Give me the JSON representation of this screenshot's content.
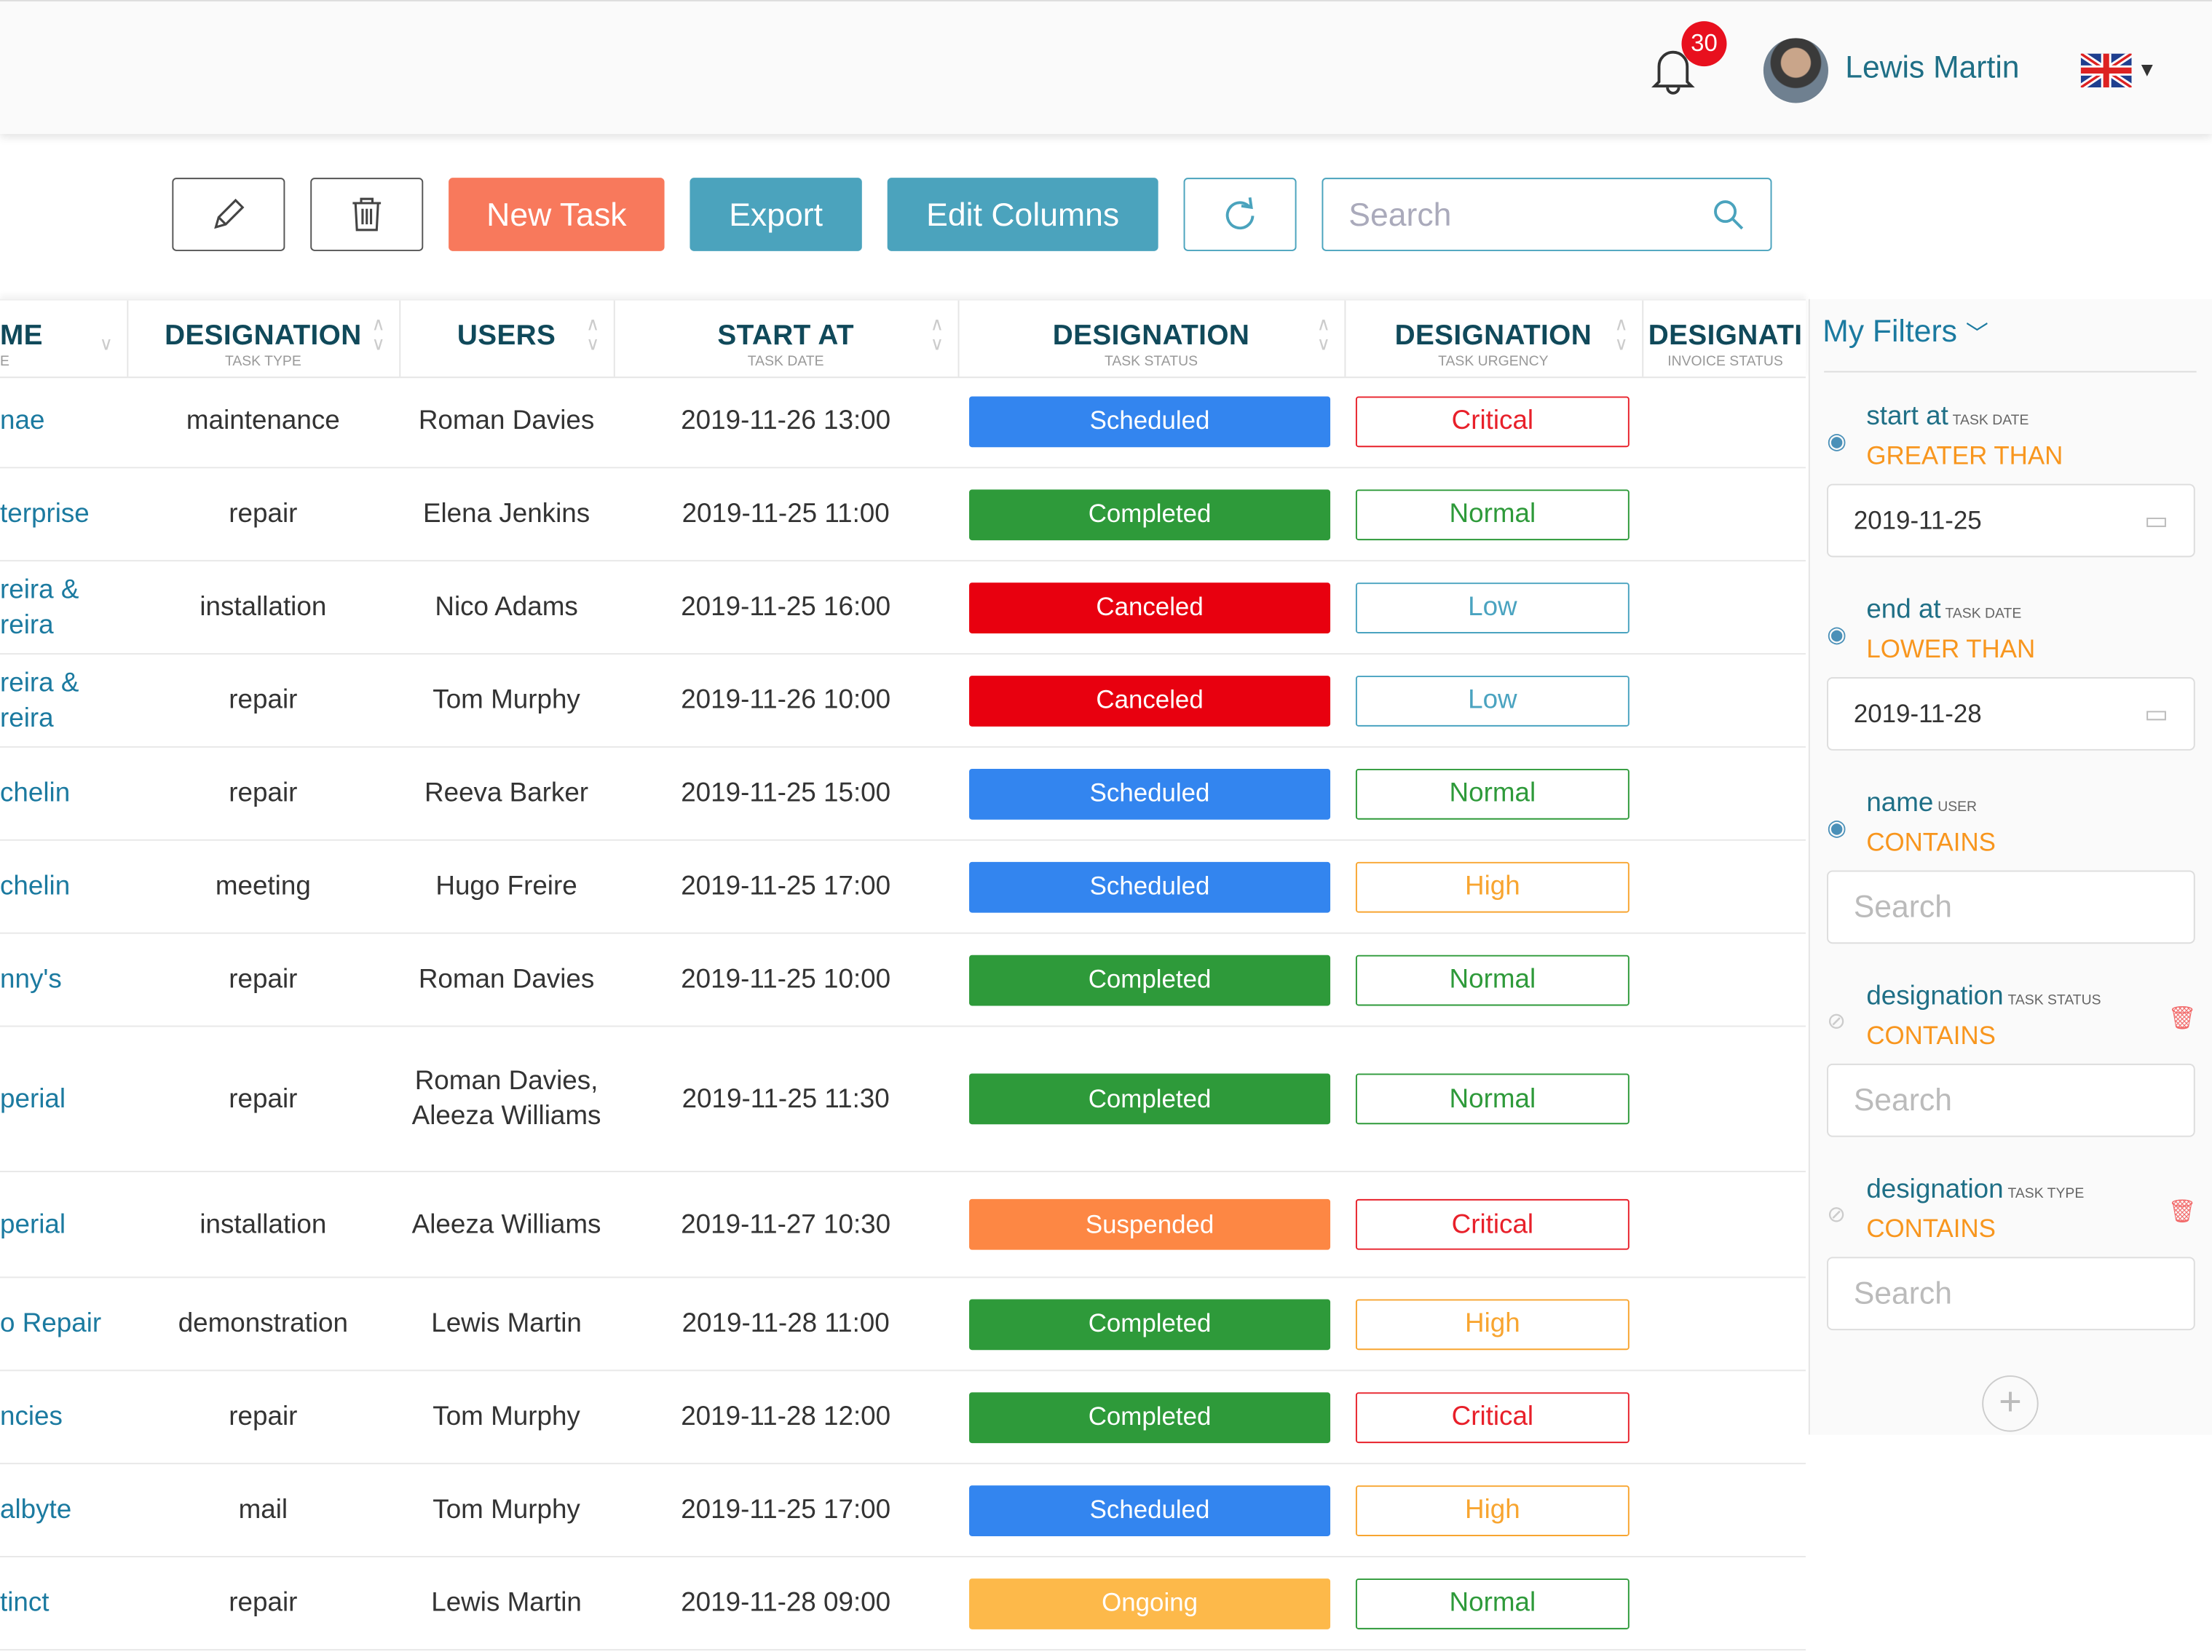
{
  "header": {
    "notifications": "30",
    "user_name": "Lewis Martin",
    "language": "en-GB"
  },
  "toolbar": {
    "new_task": "New Task",
    "export": "Export",
    "edit_columns": "Edit Columns",
    "search_placeholder": "Search"
  },
  "columns": [
    {
      "title": "ME",
      "sub": "E"
    },
    {
      "title": "DESIGNATION",
      "sub": "TASK TYPE"
    },
    {
      "title": "USERS",
      "sub": ""
    },
    {
      "title": "START AT",
      "sub": "TASK DATE"
    },
    {
      "title": "DESIGNATION",
      "sub": "TASK STATUS"
    },
    {
      "title": "DESIGNATION",
      "sub": "TASK URGENCY"
    },
    {
      "title": "DESIGNATI",
      "sub": "INVOICE STATUS"
    }
  ],
  "rows": [
    {
      "name": "nae",
      "type": "maintenance",
      "users": "Roman Davies",
      "start": "2019-11-26 13:00",
      "status": "Scheduled",
      "urgency": "Critical"
    },
    {
      "name": "terprise",
      "type": "repair",
      "users": "Elena Jenkins",
      "start": "2019-11-25 11:00",
      "status": "Completed",
      "urgency": "Normal"
    },
    {
      "name": "reira & reira",
      "type": "installation",
      "users": "Nico Adams",
      "start": "2019-11-25 16:00",
      "status": "Canceled",
      "urgency": "Low"
    },
    {
      "name": "reira & reira",
      "type": "repair",
      "users": "Tom Murphy",
      "start": "2019-11-26 10:00",
      "status": "Canceled",
      "urgency": "Low"
    },
    {
      "name": "chelin",
      "type": "repair",
      "users": "Reeva Barker",
      "start": "2019-11-25 15:00",
      "status": "Scheduled",
      "urgency": "Normal"
    },
    {
      "name": "chelin",
      "type": "meeting",
      "users": "Hugo Freire",
      "start": "2019-11-25 17:00",
      "status": "Scheduled",
      "urgency": "High"
    },
    {
      "name": "nny's",
      "type": "repair",
      "users": "Roman Davies",
      "start": "2019-11-25 10:00",
      "status": "Completed",
      "urgency": "Normal"
    },
    {
      "name": "perial",
      "type": "repair",
      "users": "Roman Davies, Aleeza Williams",
      "start": "2019-11-25 11:30",
      "status": "Completed",
      "urgency": "Normal"
    },
    {
      "name": "perial",
      "type": "installation",
      "users": "Aleeza Williams",
      "start": "2019-11-27 10:30",
      "status": "Suspended",
      "urgency": "Critical"
    },
    {
      "name": "o Repair",
      "type": "demonstration",
      "users": "Lewis Martin",
      "start": "2019-11-28 11:00",
      "status": "Completed",
      "urgency": "High"
    },
    {
      "name": "ncies",
      "type": "repair",
      "users": "Tom Murphy",
      "start": "2019-11-28 12:00",
      "status": "Completed",
      "urgency": "Critical"
    },
    {
      "name": "albyte",
      "type": "mail",
      "users": "Tom Murphy",
      "start": "2019-11-25 17:00",
      "status": "Scheduled",
      "urgency": "High"
    },
    {
      "name": "tinct",
      "type": "repair",
      "users": "Lewis Martin",
      "start": "2019-11-28 09:00",
      "status": "Ongoing",
      "urgency": "Normal"
    }
  ],
  "status_colors": {
    "Scheduled": "#3385ef",
    "Completed": "#2e9a3a",
    "Canceled": "#e8000f",
    "Suspended": "#fd8744",
    "Ongoing": "#fdb94a"
  },
  "urgency_colors": {
    "Critical": "#e8202a",
    "Normal": "#2e9a3a",
    "Low": "#4aa3c0",
    "High": "#f8a530"
  },
  "filters": {
    "title": "My Filters",
    "items": [
      {
        "field": "start at",
        "sub": "TASK DATE",
        "op": "GREATER THAN",
        "value": "2019-11-25",
        "placeholder": ""
      },
      {
        "field": "end at",
        "sub": "TASK DATE",
        "op": "LOWER THAN",
        "value": "2019-11-28",
        "placeholder": ""
      },
      {
        "field": "name",
        "sub": "USER",
        "op": "CONTAINS",
        "value": "",
        "placeholder": "Search"
      },
      {
        "field": "designation",
        "sub": "TASK STATUS",
        "op": "CONTAINS",
        "value": "",
        "placeholder": "Search"
      },
      {
        "field": "designation",
        "sub": "TASK TYPE",
        "op": "CONTAINS",
        "value": "",
        "placeholder": "Search"
      }
    ]
  }
}
